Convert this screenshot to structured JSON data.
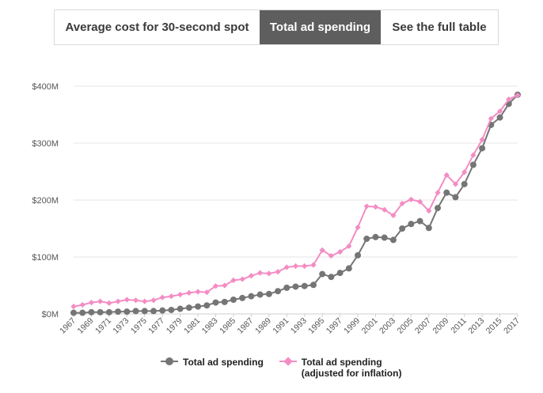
{
  "tabs": [
    {
      "label": "Average cost for 30-second spot",
      "active": false
    },
    {
      "label": "Total ad spending",
      "active": true
    },
    {
      "label": "See the full table",
      "active": false
    }
  ],
  "chart_data": {
    "type": "line",
    "title": "",
    "xlabel": "",
    "ylabel": "",
    "ylim": [
      0,
      400
    ],
    "y_ticks": [
      0,
      100,
      200,
      300,
      400
    ],
    "y_tick_labels": [
      "$0M",
      "$100M",
      "$200M",
      "$300M",
      "$400M"
    ],
    "x": [
      1967,
      1968,
      1969,
      1970,
      1971,
      1972,
      1973,
      1974,
      1975,
      1976,
      1977,
      1978,
      1979,
      1980,
      1981,
      1982,
      1983,
      1984,
      1985,
      1986,
      1987,
      1988,
      1989,
      1990,
      1991,
      1992,
      1993,
      1994,
      1995,
      1996,
      1997,
      1998,
      1999,
      2000,
      2001,
      2002,
      2003,
      2004,
      2005,
      2006,
      2007,
      2008,
      2009,
      2010,
      2011,
      2012,
      2013,
      2014,
      2015,
      2016,
      2017
    ],
    "x_tick_labels": [
      "1967",
      "1969",
      "1971",
      "1973",
      "1975",
      "1977",
      "1979",
      "1981",
      "1983",
      "1985",
      "1987",
      "1989",
      "1991",
      "1993",
      "1995",
      "1997",
      "1999",
      "2001",
      "2003",
      "2005",
      "2007",
      "2009",
      "2011",
      "2013",
      "2015",
      "2017"
    ],
    "grid": true,
    "series": [
      {
        "name": "Total ad spending",
        "color": "#757575",
        "marker": "circle",
        "values": [
          2,
          2,
          3,
          3,
          3,
          4,
          4,
          5,
          5,
          5,
          6,
          7,
          9,
          11,
          13,
          15,
          20,
          21,
          25,
          28,
          31,
          34,
          35,
          40,
          46,
          48,
          49,
          51,
          70,
          65,
          72,
          80,
          103,
          132,
          135,
          134,
          130,
          150,
          158,
          163,
          151,
          186,
          213,
          205,
          228,
          262,
          291,
          332,
          345,
          369,
          385
        ]
      },
      {
        "name": "Total ad spending (adjusted for inflation)",
        "label_line1": "Total ad spending",
        "label_line2": "(adjusted for inflation)",
        "color": "#f48cc4",
        "marker": "diamond",
        "values": [
          13,
          16,
          20,
          22,
          19,
          22,
          25,
          24,
          22,
          24,
          29,
          31,
          34,
          37,
          39,
          38,
          49,
          50,
          59,
          61,
          67,
          72,
          71,
          74,
          82,
          84,
          84,
          86,
          112,
          102,
          109,
          119,
          152,
          189,
          188,
          183,
          173,
          194,
          201,
          197,
          181,
          213,
          244,
          228,
          249,
          279,
          306,
          343,
          356,
          377,
          384
        ]
      }
    ]
  }
}
